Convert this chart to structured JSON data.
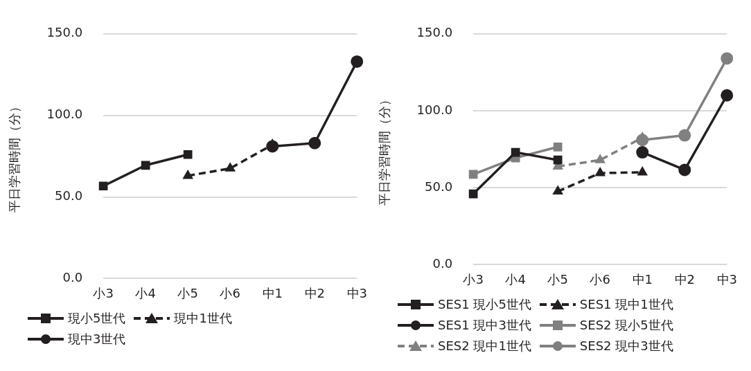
{
  "chart_data": [
    {
      "type": "line",
      "ylabel": "平日学習時間（分）",
      "categories": [
        "小3",
        "小4",
        "小5",
        "小6",
        "中1",
        "中2",
        "中3"
      ],
      "ylim": [
        0,
        150
      ],
      "yticks": [
        {
          "value": 0,
          "label": "0.0"
        },
        {
          "value": 50,
          "label": "50.0"
        },
        {
          "value": 100,
          "label": "100.0"
        },
        {
          "value": 150,
          "label": "150.0"
        }
      ],
      "grid": "y",
      "legend": "bottom",
      "series": [
        {
          "name": "現小5世代",
          "color": "#231f20",
          "marker": "square",
          "line_style": "solid",
          "values": [
            56.7,
            69.4,
            76,
            null,
            null,
            null,
            null
          ]
        },
        {
          "name": "現中1世代",
          "color": "#231f20",
          "marker": "triangle",
          "line_style": "dashed",
          "values": [
            null,
            null,
            63,
            67.5,
            82,
            null,
            null
          ]
        },
        {
          "name": "現中3世代",
          "color": "#231f20",
          "marker": "circle",
          "line_style": "solid",
          "values": [
            null,
            null,
            null,
            null,
            81,
            83,
            133
          ]
        }
      ]
    },
    {
      "type": "line",
      "ylabel": "平日学習時間（分）",
      "categories": [
        "小3",
        "小4",
        "小5",
        "小6",
        "中1",
        "中2",
        "中3"
      ],
      "ylim": [
        0,
        150
      ],
      "yticks": [
        {
          "value": 0,
          "label": "0.0"
        },
        {
          "value": 50,
          "label": "50.0"
        },
        {
          "value": 100,
          "label": "100.0"
        },
        {
          "value": 150,
          "label": "150.0"
        }
      ],
      "grid": "y",
      "legend": "bottom",
      "series": [
        {
          "name": "SES1 現小5世代",
          "color": "#231f20",
          "marker": "square",
          "line_style": "solid",
          "values": [
            46,
            73,
            68,
            null,
            null,
            null,
            null
          ]
        },
        {
          "name": "SES1 現中1世代",
          "color": "#231f20",
          "marker": "triangle",
          "line_style": "dashed",
          "values": [
            null,
            null,
            47.6,
            59.5,
            60,
            null,
            null
          ]
        },
        {
          "name": "SES1 現中3世代",
          "color": "#231f20",
          "marker": "circle",
          "line_style": "solid",
          "values": [
            null,
            null,
            null,
            null,
            73,
            61.6,
            110
          ]
        },
        {
          "name": "SES2 現小5世代",
          "color": "#808080",
          "marker": "square",
          "line_style": "solid",
          "values": [
            58.7,
            69.4,
            76.5,
            null,
            null,
            null,
            null
          ]
        },
        {
          "name": "SES2 現中1世代",
          "color": "#808080",
          "marker": "triangle",
          "line_style": "dashed",
          "values": [
            null,
            null,
            63.8,
            68,
            82.5,
            null,
            null
          ]
        },
        {
          "name": "SES2 現中3世代",
          "color": "#808080",
          "marker": "circle",
          "line_style": "solid",
          "values": [
            null,
            null,
            null,
            null,
            81,
            84,
            134
          ]
        }
      ]
    }
  ]
}
